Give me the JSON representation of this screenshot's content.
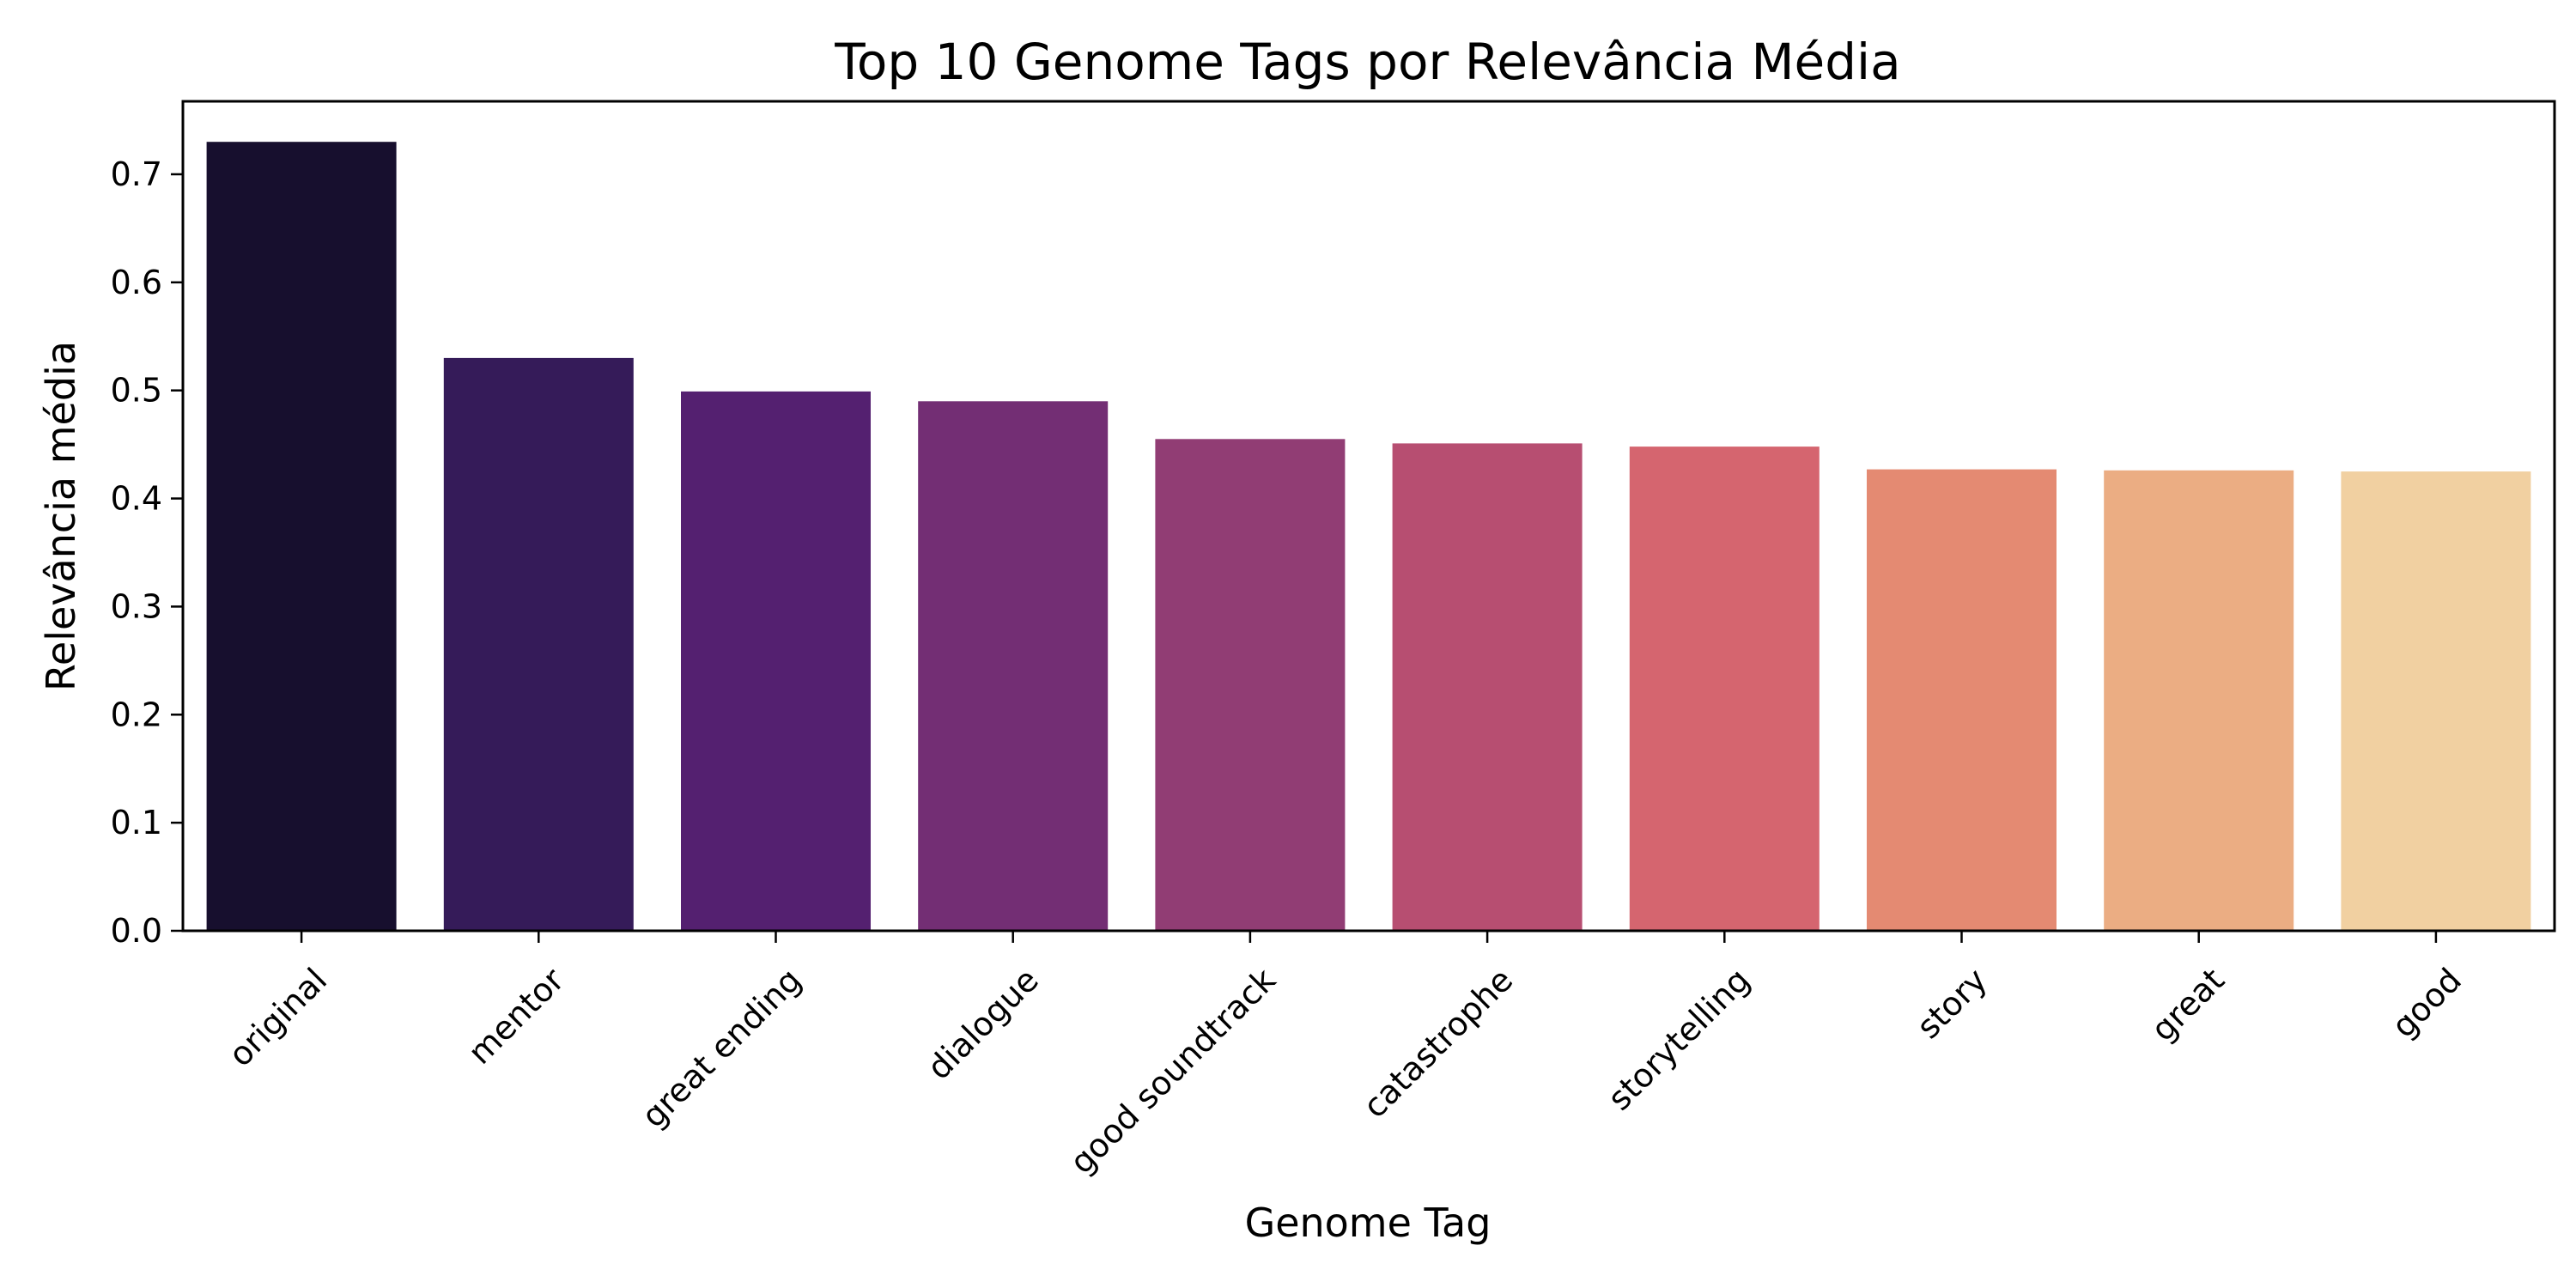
{
  "chart_data": {
    "type": "bar",
    "title": "Top 10 Genome Tags por Relevância Média",
    "xlabel": "Genome Tag",
    "ylabel": "Relevância média",
    "categories": [
      "original",
      "mentor",
      "great ending",
      "dialogue",
      "good soundtrack",
      "catastrophe",
      "storytelling",
      "story",
      "great",
      "good"
    ],
    "values": [
      0.73,
      0.53,
      0.499,
      0.49,
      0.455,
      0.451,
      0.448,
      0.427,
      0.426,
      0.425
    ],
    "colors": [
      "#170f2e",
      "#351b59",
      "#542070",
      "#732e74",
      "#913d74",
      "#b74e71",
      "#d5656f",
      "#e48a72",
      "#ebad83",
      "#f1d0a1"
    ],
    "ylim": [
      0,
      0.7675
    ],
    "yticks": [
      "0.0",
      "0.1",
      "0.2",
      "0.3",
      "0.4",
      "0.5",
      "0.6",
      "0.7"
    ],
    "ytick_values": [
      0,
      0.1,
      0.2,
      0.3,
      0.4,
      0.5,
      0.6,
      0.7
    ],
    "grid": false,
    "legend": "none"
  }
}
